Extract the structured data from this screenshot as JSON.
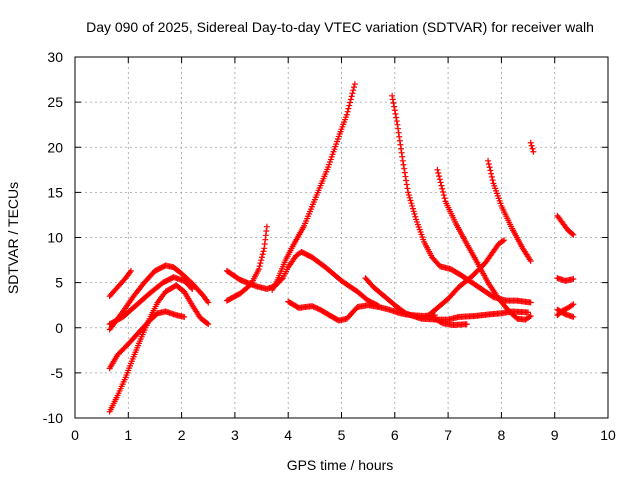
{
  "chart_data": {
    "type": "scatter",
    "title": "Day 090 of 2025, Sidereal Day-to-day VTEC variation (SDTVAR) for receiver walh",
    "xlabel": "GPS time / hours",
    "ylabel": "SDTVAR / TECUs",
    "xlim": [
      0,
      10
    ],
    "ylim": [
      -10,
      30
    ],
    "x_ticks": [
      "0",
      "1",
      "2",
      "3",
      "4",
      "5",
      "6",
      "7",
      "8",
      "9",
      "10"
    ],
    "y_ticks": [
      "-10",
      "-5",
      "0",
      "5",
      "10",
      "15",
      "20",
      "25",
      "30"
    ],
    "grid": true,
    "marker": "+",
    "color": "#ff0000",
    "series": [
      {
        "points": [
          [
            0.65,
            3.5
          ],
          [
            0.8,
            4.5
          ],
          [
            0.95,
            5.5
          ],
          [
            1.05,
            6.3
          ]
        ]
      },
      {
        "points": [
          [
            0.65,
            0.4
          ],
          [
            0.9,
            1.2
          ],
          [
            1.15,
            2.5
          ],
          [
            1.4,
            3.8
          ],
          [
            1.65,
            5.0
          ],
          [
            1.85,
            5.6
          ],
          [
            2.05,
            5.2
          ],
          [
            2.2,
            4.3
          ]
        ]
      },
      {
        "points": [
          [
            0.65,
            -0.2
          ],
          [
            0.9,
            1.8
          ],
          [
            1.1,
            3.5
          ],
          [
            1.3,
            5.0
          ],
          [
            1.5,
            6.3
          ],
          [
            1.7,
            6.9
          ],
          [
            1.85,
            6.7
          ],
          [
            2.0,
            6.0
          ],
          [
            2.2,
            4.9
          ],
          [
            2.4,
            3.6
          ],
          [
            2.5,
            2.8
          ]
        ]
      },
      {
        "points": [
          [
            0.65,
            -4.5
          ],
          [
            0.8,
            -3.0
          ],
          [
            1.0,
            -1.8
          ],
          [
            1.2,
            -0.5
          ],
          [
            1.4,
            0.8
          ],
          [
            1.55,
            1.6
          ],
          [
            1.7,
            1.8
          ],
          [
            1.9,
            1.4
          ],
          [
            2.05,
            1.2
          ]
        ]
      },
      {
        "points": [
          [
            0.65,
            -9.3
          ],
          [
            0.8,
            -7.5
          ],
          [
            0.95,
            -5.5
          ],
          [
            1.1,
            -3.2
          ],
          [
            1.25,
            -1.0
          ],
          [
            1.4,
            1.0
          ],
          [
            1.55,
            2.8
          ],
          [
            1.7,
            4.0
          ],
          [
            1.9,
            4.7
          ],
          [
            2.05,
            4.0
          ],
          [
            2.2,
            2.5
          ],
          [
            2.35,
            1.1
          ],
          [
            2.5,
            0.4
          ]
        ]
      },
      {
        "points": [
          [
            2.85,
            3.0
          ],
          [
            3.1,
            3.8
          ],
          [
            3.3,
            4.8
          ],
          [
            3.45,
            6.5
          ],
          [
            3.55,
            8.8
          ],
          [
            3.6,
            11.2
          ]
        ]
      },
      {
        "points": [
          [
            2.85,
            6.3
          ],
          [
            3.1,
            5.3
          ],
          [
            3.4,
            4.6
          ],
          [
            3.6,
            4.3
          ],
          [
            3.75,
            4.6
          ],
          [
            3.9,
            5.5
          ],
          [
            4.0,
            6.7
          ],
          [
            4.15,
            8.0
          ],
          [
            4.25,
            8.4
          ],
          [
            4.45,
            7.8
          ],
          [
            4.7,
            6.7
          ],
          [
            5.0,
            5.2
          ],
          [
            5.3,
            4.0
          ],
          [
            5.5,
            3.0
          ],
          [
            5.7,
            2.4
          ]
        ]
      },
      {
        "points": [
          [
            3.7,
            4.2
          ],
          [
            3.8,
            5.3
          ],
          [
            3.95,
            7.5
          ],
          [
            4.1,
            9.2
          ],
          [
            4.3,
            11.3
          ],
          [
            4.5,
            14.2
          ],
          [
            4.75,
            17.8
          ],
          [
            4.95,
            21.2
          ],
          [
            5.1,
            23.6
          ],
          [
            5.25,
            27.0
          ]
        ]
      },
      {
        "points": [
          [
            4.0,
            2.9
          ],
          [
            4.2,
            2.2
          ],
          [
            4.45,
            2.4
          ],
          [
            4.6,
            2.0
          ],
          [
            4.8,
            1.3
          ],
          [
            4.95,
            0.8
          ],
          [
            5.1,
            1.0
          ],
          [
            5.3,
            2.3
          ],
          [
            5.5,
            2.5
          ],
          [
            5.7,
            2.3
          ],
          [
            5.9,
            2.0
          ],
          [
            6.1,
            1.6
          ],
          [
            6.3,
            1.4
          ],
          [
            6.55,
            1.3
          ],
          [
            6.75,
            1.4
          ]
        ]
      },
      {
        "points": [
          [
            5.45,
            5.5
          ],
          [
            5.6,
            4.5
          ],
          [
            5.8,
            3.5
          ],
          [
            6.0,
            2.5
          ],
          [
            6.2,
            1.6
          ],
          [
            6.5,
            1.0
          ],
          [
            6.8,
            0.9
          ],
          [
            7.0,
            0.9
          ],
          [
            7.2,
            1.2
          ],
          [
            7.5,
            1.3
          ],
          [
            7.8,
            1.5
          ],
          [
            8.0,
            1.6
          ],
          [
            8.2,
            1.8
          ],
          [
            8.5,
            1.7
          ]
        ]
      },
      {
        "points": [
          [
            5.95,
            25.7
          ],
          [
            6.05,
            22.5
          ],
          [
            6.15,
            18.5
          ],
          [
            6.25,
            15.0
          ],
          [
            6.4,
            12.0
          ],
          [
            6.55,
            9.5
          ],
          [
            6.7,
            7.8
          ],
          [
            6.85,
            6.8
          ],
          [
            7.05,
            6.5
          ],
          [
            7.25,
            5.8
          ],
          [
            7.45,
            5.0
          ],
          [
            7.65,
            4.2
          ],
          [
            7.85,
            3.4
          ],
          [
            8.1,
            3.0
          ],
          [
            8.3,
            3.0
          ],
          [
            8.55,
            2.8
          ]
        ]
      },
      {
        "points": [
          [
            6.6,
            1.2
          ],
          [
            6.8,
            2.2
          ],
          [
            7.0,
            3.2
          ],
          [
            7.2,
            4.5
          ],
          [
            7.45,
            5.7
          ],
          [
            7.7,
            7.2
          ],
          [
            7.95,
            9.3
          ],
          [
            8.05,
            9.7
          ]
        ]
      },
      {
        "points": [
          [
            6.8,
            17.5
          ],
          [
            6.95,
            14.0
          ],
          [
            7.15,
            11.5
          ],
          [
            7.35,
            9.3
          ],
          [
            7.55,
            7.2
          ],
          [
            7.75,
            5.0
          ],
          [
            7.95,
            3.2
          ],
          [
            8.15,
            1.8
          ],
          [
            8.3,
            1.0
          ],
          [
            8.45,
            0.9
          ],
          [
            8.55,
            1.3
          ]
        ]
      },
      {
        "points": [
          [
            7.75,
            18.5
          ],
          [
            7.85,
            16.0
          ],
          [
            8.0,
            13.5
          ],
          [
            8.2,
            11.0
          ],
          [
            8.4,
            8.8
          ],
          [
            8.55,
            7.4
          ]
        ]
      },
      {
        "points": [
          [
            6.7,
            1.2
          ],
          [
            6.9,
            0.5
          ],
          [
            7.1,
            0.3
          ],
          [
            7.35,
            0.4
          ]
        ]
      },
      {
        "points": [
          [
            8.55,
            20.5
          ],
          [
            8.6,
            19.5
          ]
        ]
      },
      {
        "points": [
          [
            9.05,
            12.4
          ],
          [
            9.15,
            11.6
          ],
          [
            9.25,
            10.8
          ],
          [
            9.35,
            10.3
          ]
        ]
      },
      {
        "points": [
          [
            9.05,
            5.5
          ],
          [
            9.2,
            5.2
          ],
          [
            9.35,
            5.4
          ]
        ]
      },
      {
        "points": [
          [
            9.05,
            1.4
          ],
          [
            9.15,
            1.9
          ],
          [
            9.25,
            2.2
          ],
          [
            9.35,
            2.6
          ]
        ]
      },
      {
        "points": [
          [
            9.05,
            2.0
          ],
          [
            9.2,
            1.5
          ],
          [
            9.35,
            1.2
          ]
        ]
      }
    ]
  }
}
